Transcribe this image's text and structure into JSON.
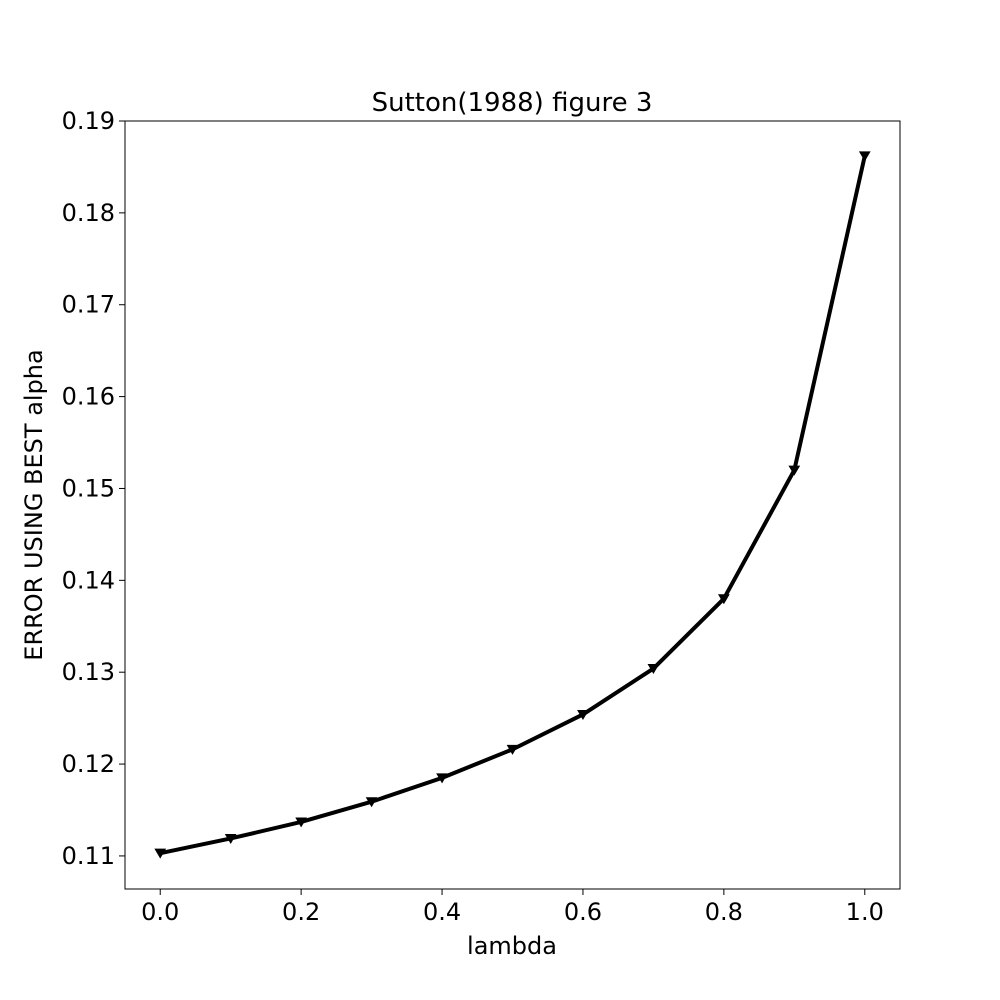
{
  "chart_data": {
    "type": "line",
    "title": "Sutton(1988) figure 3",
    "xlabel": "lambda",
    "ylabel": "ERROR USING BEST alpha",
    "x": [
      0.0,
      0.1,
      0.2,
      0.3,
      0.4,
      0.5,
      0.6,
      0.7,
      0.8,
      0.9,
      1.0
    ],
    "series": [
      {
        "values": [
          0.1103,
          0.1119,
          0.1137,
          0.1159,
          0.1185,
          0.1216,
          0.1254,
          0.1304,
          0.138,
          0.152,
          0.1862
        ],
        "color": "#000000",
        "marker": "triangle-down"
      }
    ],
    "xlim": [
      -0.05,
      1.05
    ],
    "ylim": [
      0.1064,
      0.19
    ],
    "xticks": [
      "0.0",
      "0.2",
      "0.4",
      "0.6",
      "0.8",
      "1.0"
    ],
    "yticks": [
      "0.11",
      "0.12",
      "0.13",
      "0.14",
      "0.15",
      "0.16",
      "0.17",
      "0.18",
      "0.19"
    ],
    "grid": false,
    "legend": "none"
  }
}
